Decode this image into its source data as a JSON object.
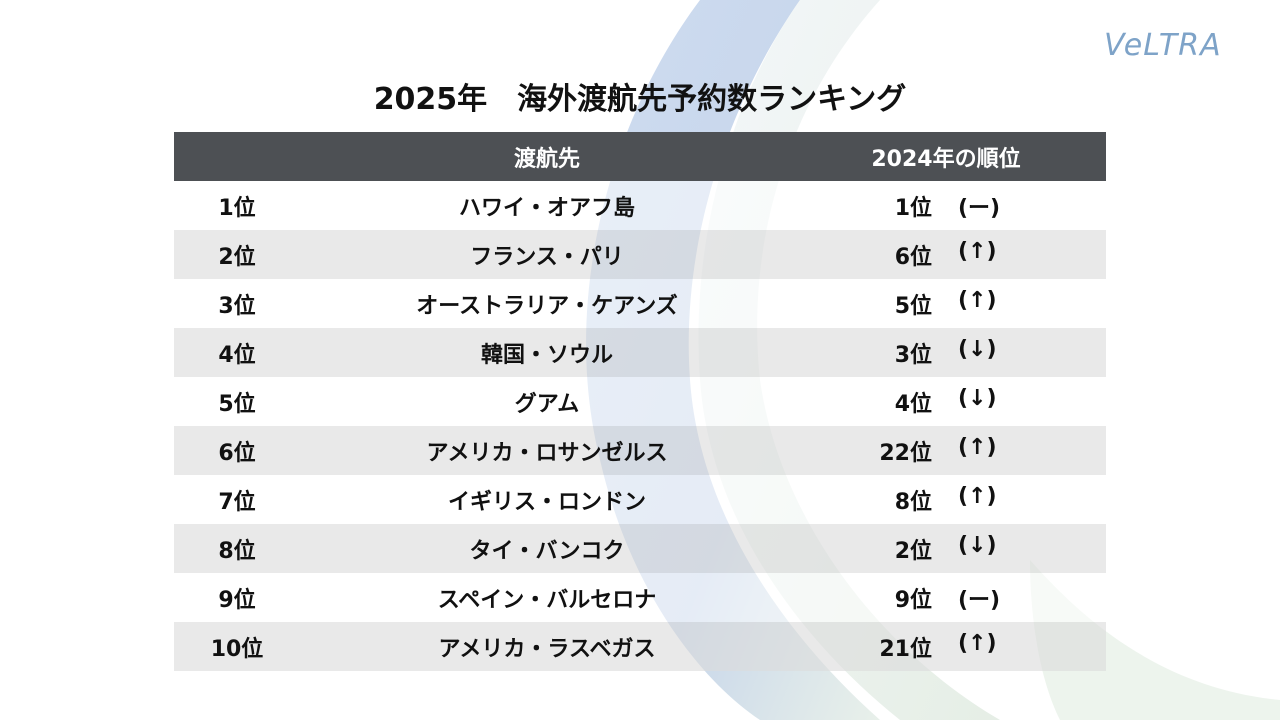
{
  "logo": {
    "text": "VeLTRA"
  },
  "title": "2025年　海外渡航先予約数ランキング",
  "colors": {
    "header_bg": "#4d5054",
    "row_alt_bg": "#e9e9e9",
    "logo": "#7ea3c8"
  },
  "table": {
    "headers": {
      "rank": "",
      "destination": "渡航先",
      "prev_rank": "2024年の順位"
    },
    "rows": [
      {
        "rank": "1位",
        "destination": "ハワイ・オアフ島",
        "prev_rank": "1位",
        "trend": "(ー)"
      },
      {
        "rank": "2位",
        "destination": "フランス・パリ",
        "prev_rank": "6位",
        "trend": "(↑)"
      },
      {
        "rank": "3位",
        "destination": "オーストラリア・ケアンズ",
        "prev_rank": "5位",
        "trend": "(↑)"
      },
      {
        "rank": "4位",
        "destination": "韓国・ソウル",
        "prev_rank": "3位",
        "trend": "(↓)"
      },
      {
        "rank": "5位",
        "destination": "グアム",
        "prev_rank": "4位",
        "trend": "(↓)"
      },
      {
        "rank": "6位",
        "destination": "アメリカ・ロサンゼルス",
        "prev_rank": "22位",
        "trend": "(↑)"
      },
      {
        "rank": "7位",
        "destination": "イギリス・ロンドン",
        "prev_rank": "8位",
        "trend": "(↑)"
      },
      {
        "rank": "8位",
        "destination": "タイ・バンコク",
        "prev_rank": "2位",
        "trend": "(↓)"
      },
      {
        "rank": "9位",
        "destination": "スペイン・バルセロナ",
        "prev_rank": "9位",
        "trend": "(ー)"
      },
      {
        "rank": "10位",
        "destination": "アメリカ・ラスベガス",
        "prev_rank": "21位",
        "trend": "(↑)"
      }
    ]
  }
}
